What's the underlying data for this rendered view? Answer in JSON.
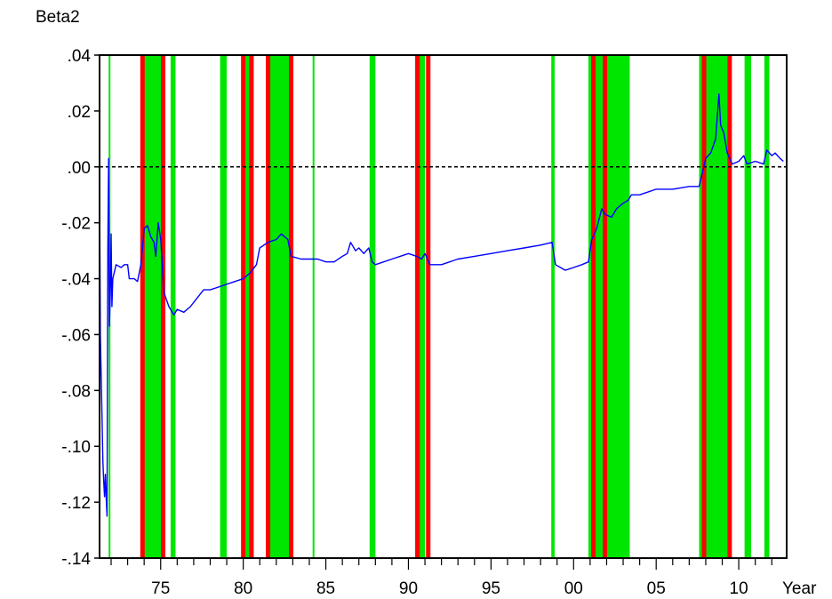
{
  "chart_data": {
    "type": "line",
    "title": "Beta2",
    "xlabel": "Year",
    "ylabel": "",
    "xlim": [
      1971.3,
      2012.9
    ],
    "ylim": [
      -0.14,
      0.04
    ],
    "x_ticks": [
      {
        "value": 1975,
        "label": "75"
      },
      {
        "value": 1980,
        "label": "80"
      },
      {
        "value": 1985,
        "label": "85"
      },
      {
        "value": 1990,
        "label": "90"
      },
      {
        "value": 1995,
        "label": "95"
      },
      {
        "value": 2000,
        "label": "00"
      },
      {
        "value": 2005,
        "label": "05"
      },
      {
        "value": 2010,
        "label": "10"
      }
    ],
    "y_ticks": [
      {
        "value": 0.04,
        "label": ".04"
      },
      {
        "value": 0.02,
        "label": ".02"
      },
      {
        "value": 0.0,
        "label": ".00"
      },
      {
        "value": -0.02,
        "label": "-.02"
      },
      {
        "value": -0.04,
        "label": "-.04"
      },
      {
        "value": -0.06,
        "label": "-.06"
      },
      {
        "value": -0.08,
        "label": "-.08"
      },
      {
        "value": -0.1,
        "label": "-.10"
      },
      {
        "value": -0.12,
        "label": "-.12"
      },
      {
        "value": -0.14,
        "label": "-.14"
      }
    ],
    "reference_line": {
      "y": 0.0,
      "style": "dashed",
      "color": "#000000"
    },
    "green_bands": [
      [
        1971.85,
        1971.95
      ],
      [
        1973.95,
        1975.15
      ],
      [
        1975.6,
        1975.9
      ],
      [
        1978.6,
        1979.0
      ],
      [
        1979.9,
        1980.5
      ],
      [
        1981.4,
        1982.8
      ],
      [
        1984.2,
        1984.3
      ],
      [
        1987.65,
        1988.0
      ],
      [
        1990.4,
        1991.0
      ],
      [
        1998.65,
        1998.85
      ],
      [
        2000.9,
        2003.4
      ],
      [
        2007.6,
        2009.5
      ],
      [
        2010.35,
        2010.75
      ],
      [
        2011.55,
        2011.85
      ]
    ],
    "red_lines": [
      1973.9,
      1975.15,
      1980.0,
      1980.5,
      1981.5,
      1982.9,
      1990.55,
      1991.2,
      2001.2,
      2001.9,
      2007.9,
      2009.45
    ],
    "series": [
      {
        "color": "#0000ff",
        "points": [
          [
            1971.3,
            -0.005
          ],
          [
            1971.35,
            -0.06
          ],
          [
            1971.45,
            -0.09
          ],
          [
            1971.5,
            -0.105
          ],
          [
            1971.55,
            -0.112
          ],
          [
            1971.6,
            -0.118
          ],
          [
            1971.65,
            -0.11
          ],
          [
            1971.7,
            -0.118
          ],
          [
            1971.75,
            -0.125
          ],
          [
            1971.8,
            -0.03
          ],
          [
            1971.85,
            0.003
          ],
          [
            1971.9,
            -0.057
          ],
          [
            1971.95,
            -0.045
          ],
          [
            1972.0,
            -0.024
          ],
          [
            1972.05,
            -0.05
          ],
          [
            1972.1,
            -0.04
          ],
          [
            1972.3,
            -0.035
          ],
          [
            1972.6,
            -0.036
          ],
          [
            1972.8,
            -0.035
          ],
          [
            1973.0,
            -0.035
          ],
          [
            1973.1,
            -0.04
          ],
          [
            1973.4,
            -0.04
          ],
          [
            1973.6,
            -0.041
          ],
          [
            1973.8,
            -0.035
          ],
          [
            1974.0,
            -0.022
          ],
          [
            1974.2,
            -0.021
          ],
          [
            1974.4,
            -0.025
          ],
          [
            1974.6,
            -0.027
          ],
          [
            1974.7,
            -0.032
          ],
          [
            1974.85,
            -0.02
          ],
          [
            1975.0,
            -0.026
          ],
          [
            1975.2,
            -0.045
          ],
          [
            1975.5,
            -0.05
          ],
          [
            1975.8,
            -0.053
          ],
          [
            1976.0,
            -0.051
          ],
          [
            1976.4,
            -0.052
          ],
          [
            1976.8,
            -0.05
          ],
          [
            1977.2,
            -0.047
          ],
          [
            1977.6,
            -0.044
          ],
          [
            1978.0,
            -0.044
          ],
          [
            1978.5,
            -0.043
          ],
          [
            1979.0,
            -0.042
          ],
          [
            1979.5,
            -0.041
          ],
          [
            1980.0,
            -0.04
          ],
          [
            1980.4,
            -0.038
          ],
          [
            1980.8,
            -0.035
          ],
          [
            1981.0,
            -0.029
          ],
          [
            1981.5,
            -0.027
          ],
          [
            1982.0,
            -0.026
          ],
          [
            1982.3,
            -0.024
          ],
          [
            1982.7,
            -0.026
          ],
          [
            1982.9,
            -0.032
          ],
          [
            1983.5,
            -0.033
          ],
          [
            1984.0,
            -0.033
          ],
          [
            1984.5,
            -0.033
          ],
          [
            1985.0,
            -0.034
          ],
          [
            1985.5,
            -0.034
          ],
          [
            1986.0,
            -0.032
          ],
          [
            1986.3,
            -0.031
          ],
          [
            1986.5,
            -0.027
          ],
          [
            1986.8,
            -0.03
          ],
          [
            1987.0,
            -0.029
          ],
          [
            1987.3,
            -0.031
          ],
          [
            1987.6,
            -0.029
          ],
          [
            1987.8,
            -0.034
          ],
          [
            1988.0,
            -0.035
          ],
          [
            1988.5,
            -0.034
          ],
          [
            1989.0,
            -0.033
          ],
          [
            1989.5,
            -0.032
          ],
          [
            1990.0,
            -0.031
          ],
          [
            1990.5,
            -0.032
          ],
          [
            1990.8,
            -0.033
          ],
          [
            1991.0,
            -0.031
          ],
          [
            1991.3,
            -0.035
          ],
          [
            1992.0,
            -0.035
          ],
          [
            1993.0,
            -0.033
          ],
          [
            1994.0,
            -0.032
          ],
          [
            1995.0,
            -0.031
          ],
          [
            1996.0,
            -0.03
          ],
          [
            1997.0,
            -0.029
          ],
          [
            1998.0,
            -0.028
          ],
          [
            1998.7,
            -0.027
          ],
          [
            1998.9,
            -0.035
          ],
          [
            1999.5,
            -0.037
          ],
          [
            2000.0,
            -0.036
          ],
          [
            2000.5,
            -0.035
          ],
          [
            2000.9,
            -0.034
          ],
          [
            2001.1,
            -0.026
          ],
          [
            2001.4,
            -0.022
          ],
          [
            2001.7,
            -0.015
          ],
          [
            2001.9,
            -0.017
          ],
          [
            2002.3,
            -0.018
          ],
          [
            2002.6,
            -0.015
          ],
          [
            2003.0,
            -0.013
          ],
          [
            2003.3,
            -0.012
          ],
          [
            2003.5,
            -0.01
          ],
          [
            2004.0,
            -0.01
          ],
          [
            2004.5,
            -0.009
          ],
          [
            2005.0,
            -0.008
          ],
          [
            2006.0,
            -0.008
          ],
          [
            2007.0,
            -0.007
          ],
          [
            2007.6,
            -0.007
          ],
          [
            2008.0,
            0.003
          ],
          [
            2008.3,
            0.005
          ],
          [
            2008.6,
            0.01
          ],
          [
            2008.8,
            0.026
          ],
          [
            2008.9,
            0.015
          ],
          [
            2009.1,
            0.012
          ],
          [
            2009.3,
            0.005
          ],
          [
            2009.6,
            0.001
          ],
          [
            2010.0,
            0.002
          ],
          [
            2010.3,
            0.004
          ],
          [
            2010.5,
            0.001
          ],
          [
            2011.0,
            0.002
          ],
          [
            2011.5,
            0.001
          ],
          [
            2011.7,
            0.006
          ],
          [
            2012.0,
            0.004
          ],
          [
            2012.2,
            0.005
          ],
          [
            2012.5,
            0.003
          ],
          [
            2012.7,
            0.002
          ]
        ]
      }
    ]
  }
}
